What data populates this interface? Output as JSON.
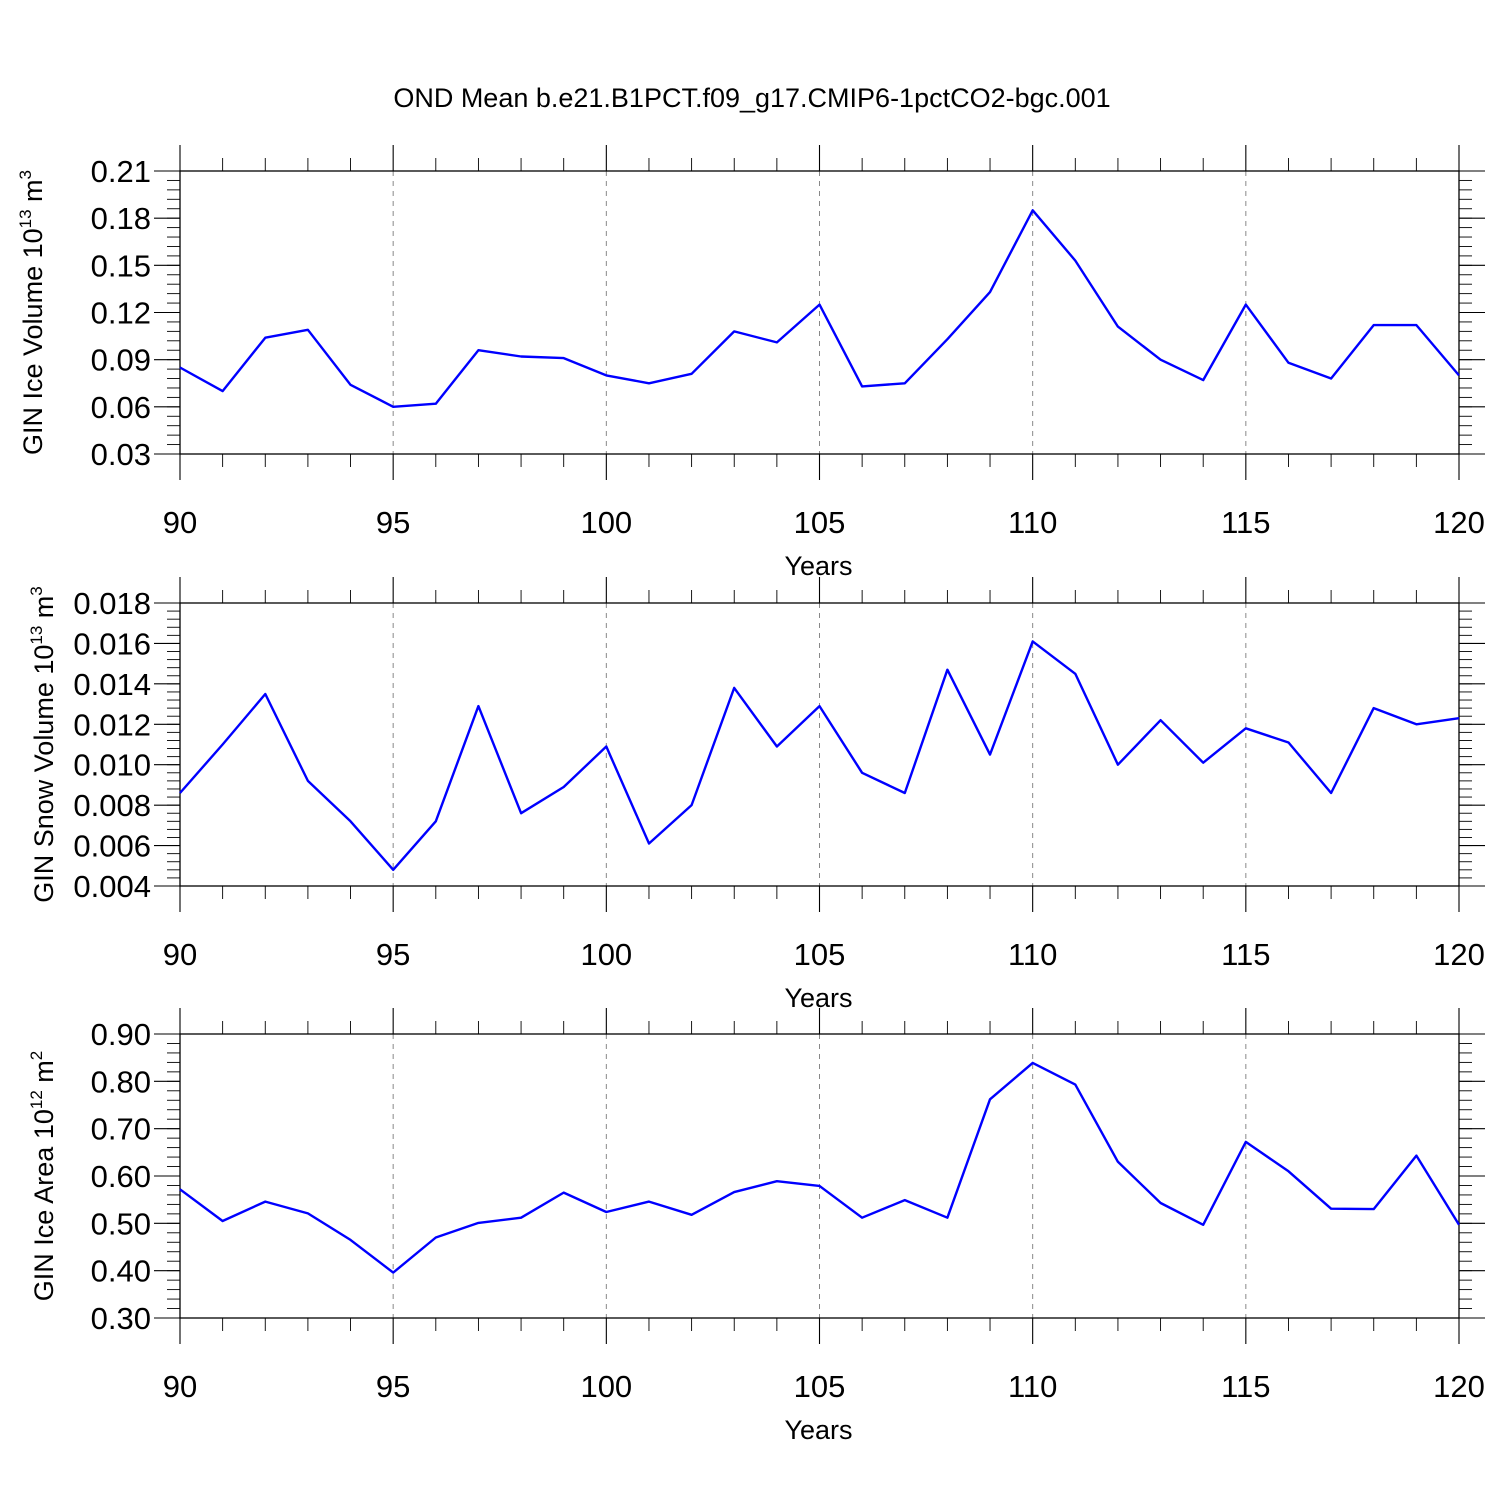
{
  "figure": {
    "title": "OND Mean b.e21.B1PCT.f09_g17.CMIP6-1pctCO2-bgc.001"
  },
  "colors": {
    "series": "#0000ff",
    "axes": "#000000",
    "grid": "#888888"
  },
  "chart_data": [
    {
      "type": "line",
      "xlabel": "Years",
      "ylabel": "GIN Ice Volume 10",
      "ylabel_exp": "13",
      "ylabel_unit": " m",
      "ylabel_unit_exp": "3",
      "xlim": [
        90,
        120
      ],
      "ylim": [
        0.03,
        0.21
      ],
      "xticks": [
        90,
        95,
        100,
        105,
        110,
        115,
        120
      ],
      "xtick_labels": [
        "90",
        "95",
        "100",
        "105",
        "110",
        "115",
        "120"
      ],
      "yticks": [
        0.03,
        0.06,
        0.09,
        0.12,
        0.15,
        0.18,
        0.21
      ],
      "ytick_labels": [
        "0.03",
        "0.06",
        "0.09",
        "0.12",
        "0.15",
        "0.18",
        "0.21"
      ],
      "x_minor_step": 1,
      "y_minor_step": 0.006,
      "grid": "dashed vertical at major x ticks",
      "x": [
        90,
        91,
        92,
        93,
        94,
        95,
        96,
        97,
        98,
        99,
        100,
        101,
        102,
        103,
        104,
        105,
        106,
        107,
        108,
        109,
        110,
        111,
        112,
        113,
        114,
        115,
        116,
        117,
        118,
        119,
        120
      ],
      "series": [
        {
          "values": [
            0.085,
            0.07,
            0.104,
            0.109,
            0.074,
            0.06,
            0.062,
            0.096,
            0.092,
            0.091,
            0.08,
            0.075,
            0.081,
            0.108,
            0.101,
            0.125,
            0.073,
            0.075,
            0.103,
            0.133,
            0.185,
            0.153,
            0.111,
            0.09,
            0.077,
            0.125,
            0.088,
            0.078,
            0.112,
            0.112,
            0.08
          ]
        }
      ]
    },
    {
      "type": "line",
      "xlabel": "Years",
      "ylabel": "GIN Snow Volume 10",
      "ylabel_exp": "13",
      "ylabel_unit": " m",
      "ylabel_unit_exp": "3",
      "xlim": [
        90,
        120
      ],
      "ylim": [
        0.004,
        0.018
      ],
      "xticks": [
        90,
        95,
        100,
        105,
        110,
        115,
        120
      ],
      "xtick_labels": [
        "90",
        "95",
        "100",
        "105",
        "110",
        "115",
        "120"
      ],
      "yticks": [
        0.004,
        0.006,
        0.008,
        0.01,
        0.012,
        0.014,
        0.016,
        0.018
      ],
      "ytick_labels": [
        "0.004",
        "0.006",
        "0.008",
        "0.010",
        "0.012",
        "0.014",
        "0.016",
        "0.018"
      ],
      "x_minor_step": 1,
      "y_minor_step": 0.0004,
      "grid": "dashed vertical at major x ticks",
      "x": [
        90,
        91,
        92,
        93,
        94,
        95,
        96,
        97,
        98,
        99,
        100,
        101,
        102,
        103,
        104,
        105,
        106,
        107,
        108,
        109,
        110,
        111,
        112,
        113,
        114,
        115,
        116,
        117,
        118,
        119,
        120
      ],
      "series": [
        {
          "values": [
            0.0086,
            0.011,
            0.0135,
            0.0092,
            0.0072,
            0.0048,
            0.0072,
            0.0129,
            0.0076,
            0.0089,
            0.0109,
            0.0061,
            0.008,
            0.0138,
            0.0109,
            0.0129,
            0.0096,
            0.0086,
            0.0147,
            0.0105,
            0.0161,
            0.0145,
            0.01,
            0.0122,
            0.0101,
            0.0118,
            0.0111,
            0.0086,
            0.0128,
            0.012,
            0.0123
          ]
        }
      ]
    },
    {
      "type": "line",
      "xlabel": "Years",
      "ylabel": "GIN Ice Area 10",
      "ylabel_exp": "12",
      "ylabel_unit": " m",
      "ylabel_unit_exp": "2",
      "xlim": [
        90,
        120
      ],
      "ylim": [
        0.3,
        0.9
      ],
      "xticks": [
        90,
        95,
        100,
        105,
        110,
        115,
        120
      ],
      "xtick_labels": [
        "90",
        "95",
        "100",
        "105",
        "110",
        "115",
        "120"
      ],
      "yticks": [
        0.3,
        0.4,
        0.5,
        0.6,
        0.7,
        0.8,
        0.9
      ],
      "ytick_labels": [
        "0.30",
        "0.40",
        "0.50",
        "0.60",
        "0.70",
        "0.80",
        "0.90"
      ],
      "x_minor_step": 1,
      "y_minor_step": 0.02,
      "grid": "dashed vertical at major x ticks",
      "x": [
        90,
        91,
        92,
        93,
        94,
        95,
        96,
        97,
        98,
        99,
        100,
        101,
        102,
        103,
        104,
        105,
        106,
        107,
        108,
        109,
        110,
        111,
        112,
        113,
        114,
        115,
        116,
        117,
        118,
        119,
        120
      ],
      "series": [
        {
          "values": [
            0.572,
            0.505,
            0.546,
            0.521,
            0.465,
            0.396,
            0.47,
            0.501,
            0.512,
            0.565,
            0.524,
            0.546,
            0.518,
            0.566,
            0.589,
            0.579,
            0.512,
            0.549,
            0.512,
            0.762,
            0.839,
            0.793,
            0.63,
            0.543,
            0.497,
            0.672,
            0.61,
            0.531,
            0.53,
            0.643,
            0.497
          ]
        }
      ]
    }
  ]
}
